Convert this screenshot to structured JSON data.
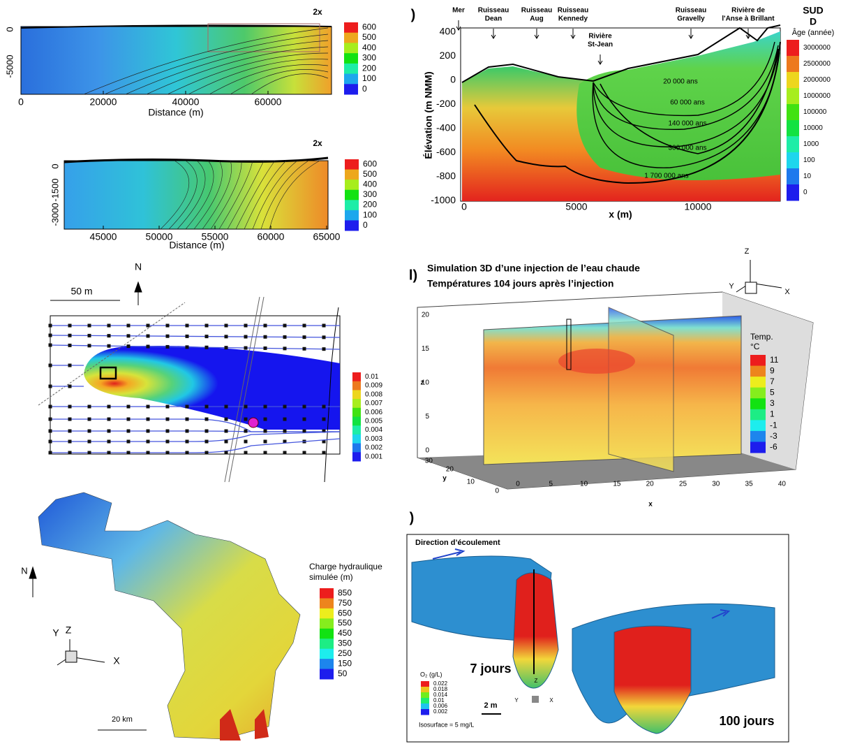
{
  "panel_a": {
    "badge": "2x",
    "y_ticks": [
      "0",
      "-5000"
    ],
    "x_ticks": [
      "0",
      "20000",
      "40000",
      "60000"
    ],
    "x_label": "Distance (m)",
    "colorbar": [
      "600",
      "500",
      "400",
      "300",
      "200",
      "100",
      "0"
    ]
  },
  "panel_a_zoom": {
    "badge": "2x",
    "y_ticks": [
      "0",
      "-1500",
      "-3000"
    ],
    "x_ticks": [
      "45000",
      "50000",
      "55000",
      "60000",
      "65000"
    ],
    "x_label": "Distance (m)",
    "colorbar": [
      "600",
      "500",
      "400",
      "300",
      "200",
      "100",
      "0"
    ]
  },
  "panel_b": {
    "letter": ")",
    "features": [
      {
        "lines": [
          "Mer"
        ]
      },
      {
        "lines": [
          "Ruisseau",
          "Dean"
        ]
      },
      {
        "lines": [
          "Ruisseau",
          "Aug"
        ]
      },
      {
        "lines": [
          "Ruisseau",
          "Kennedy"
        ]
      },
      {
        "lines": [
          "Rivière",
          "St-Jean"
        ]
      },
      {
        "lines": [
          "Ruisseau",
          "Gravelly"
        ]
      },
      {
        "lines": [
          "Rivière de",
          "l'Anse à Brillant"
        ]
      }
    ],
    "compass": [
      "SUD",
      "D"
    ],
    "legend_title": "Âge (année)",
    "colorbar": [
      "3000000",
      "2500000",
      "2000000",
      "1000000",
      "100000",
      "10000",
      "1000",
      "100",
      "10",
      "0"
    ],
    "y_ticks": [
      "400",
      "200",
      "0",
      "-200",
      "-400",
      "-600",
      "-800",
      "-1000"
    ],
    "x_ticks": [
      "0",
      "5000",
      "10000"
    ],
    "x_label": "x (m)",
    "y_label": "Élévation (m NMM)",
    "isochrones": [
      "20 000 ans",
      "60 000 ans",
      "140 000 ans",
      "300 000 ans",
      "1 700 000 ans"
    ]
  },
  "panel_c": {
    "north": "N",
    "scale": "50 m",
    "colorbar": [
      "0.01",
      "0.009",
      "0.008",
      "0.007",
      "0.006",
      "0.005",
      "0.004",
      "0.003",
      "0.002",
      "0.001"
    ]
  },
  "panel_d": {
    "letter": "l)",
    "title": [
      "Simulation 3D d’une injection de l’eau chaude",
      "Températures 104 jours après l’injection"
    ],
    "axes_icon": [
      "Z",
      "Y",
      "X"
    ],
    "z_ticks": [
      "0",
      "5",
      "10",
      "15",
      "20"
    ],
    "x_ticks": [
      "0",
      "5",
      "10",
      "15",
      "20",
      "25",
      "30",
      "35",
      "40"
    ],
    "y_ticks": [
      "0",
      "10",
      "20",
      "30"
    ],
    "z_label": "z",
    "x_label": "x",
    "y_label": "y",
    "legend_title": [
      "Temp.",
      "°C"
    ],
    "colorbar": [
      "11",
      "9",
      "7",
      "5",
      "3",
      "1",
      "-1",
      "-3",
      "-6"
    ]
  },
  "panel_e": {
    "legend_title": [
      "Charge hydraulique",
      "simulée  (m)"
    ],
    "colorbar": [
      "850",
      "750",
      "650",
      "550",
      "450",
      "350",
      "250",
      "150",
      "50"
    ],
    "north": "N",
    "axes_icon": [
      "Y",
      "Z",
      "X"
    ],
    "scale": "20 km"
  },
  "panel_f": {
    "letter": ")",
    "flow": "Direction d’écoulement",
    "labels": [
      "7 jours",
      "100 jours"
    ],
    "legend_title": "O₂ (g/L)",
    "colorbar": [
      "0.022",
      "0.018",
      "0.014",
      "0.01",
      "0.006",
      "0.002"
    ],
    "scale": "2 m",
    "isosurface": "Isosurface = 5 mg/L",
    "axes_icon": [
      "Z",
      "Y",
      "X"
    ]
  }
}
